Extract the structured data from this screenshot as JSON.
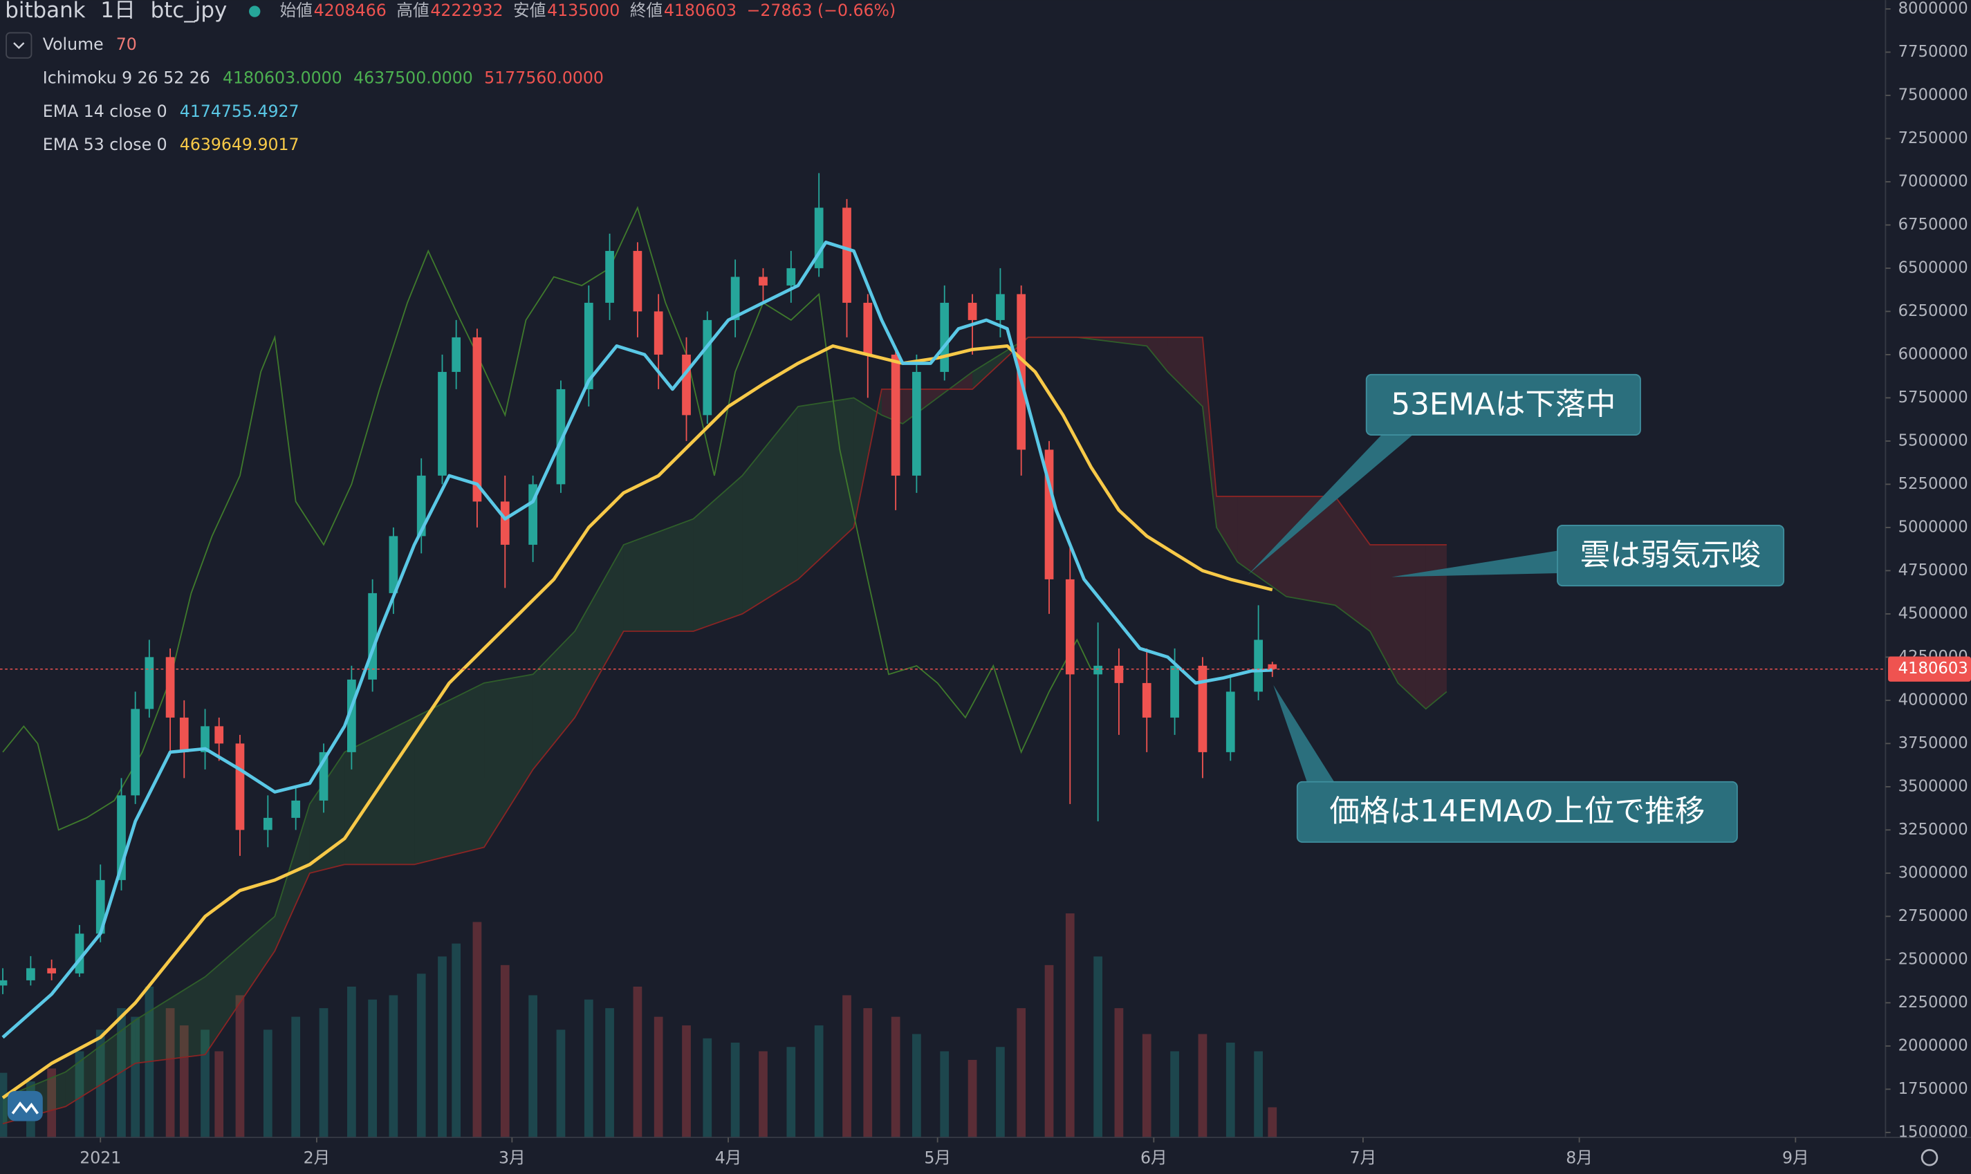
{
  "header": {
    "exchange": "bitbank",
    "interval": "1日",
    "symbol": "btc_jpy",
    "open_label": "始値",
    "open": 4208466,
    "high_label": "高値",
    "high": 4222932,
    "low_label": "安値",
    "low": 4135000,
    "close_label": "終値",
    "close": 4180603,
    "change": "−27863 (−0.66%)"
  },
  "indicators": [
    {
      "name": "Volume",
      "values": [
        70
      ],
      "colors": [
        "#ef7a76"
      ]
    },
    {
      "name": "Ichimoku 9 26 52 26",
      "values": [
        "4180603.0000",
        "4637500.0000",
        "5177560.0000"
      ],
      "colors": [
        "#4caf50",
        "#4caf50",
        "#ef5350"
      ]
    },
    {
      "name": "EMA 14 close 0",
      "values": [
        "4174755.4927"
      ],
      "colors": [
        "#5ac8e6"
      ]
    },
    {
      "name": "EMA 53 close 0",
      "values": [
        "4639649.9017"
      ],
      "colors": [
        "#f7c948"
      ]
    }
  ],
  "chart_data": {
    "type": "candlestick",
    "x": [
      -14,
      -10,
      -7,
      -3,
      0,
      3,
      5,
      7,
      10,
      12,
      15,
      17,
      20,
      24,
      28,
      32,
      36,
      39,
      42,
      46,
      49,
      51,
      54,
      58,
      62,
      66,
      70,
      73,
      77,
      80,
      84,
      87,
      91,
      95,
      99,
      103,
      107,
      110,
      114,
      117,
      121,
      125,
      129,
      132,
      136,
      139,
      143,
      146,
      150,
      154,
      158,
      162,
      166,
      168
    ],
    "open": [
      2350000,
      2380000,
      2450000,
      2420000,
      2650000,
      2960000,
      3450000,
      3950000,
      4250000,
      3900000,
      3700000,
      3850000,
      3750000,
      3250000,
      3320000,
      3420000,
      3700000,
      4120000,
      4620000,
      4950000,
      5300000,
      5900000,
      6100000,
      5150000,
      4900000,
      5250000,
      5800000,
      6300000,
      6600000,
      6250000,
      6000000,
      5650000,
      6200000,
      6450000,
      6400000,
      6500000,
      6850000,
      6300000,
      6000000,
      5300000,
      5900000,
      6300000,
      6200000,
      6350000,
      5450000,
      4700000,
      4150000,
      4200000,
      4100000,
      3900000,
      4200000,
      3700000,
      4050000,
      4208466
    ],
    "high": [
      2450000,
      2520000,
      2500000,
      2700000,
      3050000,
      3550000,
      4050000,
      4350000,
      4300000,
      4000000,
      3950000,
      3900000,
      3800000,
      3450000,
      3500000,
      3750000,
      4200000,
      4700000,
      5000000,
      5400000,
      6000000,
      6200000,
      6150000,
      5300000,
      5300000,
      5850000,
      6400000,
      6700000,
      6650000,
      6350000,
      6100000,
      6250000,
      6550000,
      6500000,
      6600000,
      7050000,
      6900000,
      6350000,
      6050000,
      6000000,
      6400000,
      6350000,
      6500000,
      6400000,
      5500000,
      4900000,
      4450000,
      4300000,
      4300000,
      4300000,
      4250000,
      4150000,
      4550000,
      4222932
    ],
    "low": [
      2300000,
      2350000,
      2380000,
      2400000,
      2600000,
      2900000,
      3400000,
      3900000,
      3700000,
      3550000,
      3600000,
      3650000,
      3100000,
      3150000,
      3250000,
      3350000,
      3600000,
      4050000,
      4500000,
      4850000,
      5250000,
      5800000,
      5000000,
      4650000,
      4800000,
      5200000,
      5700000,
      6200000,
      6100000,
      5800000,
      5500000,
      5600000,
      6100000,
      6300000,
      6300000,
      6450000,
      6100000,
      5750000,
      5100000,
      5200000,
      5850000,
      6000000,
      6100000,
      5300000,
      4500000,
      3400000,
      3300000,
      3800000,
      3700000,
      3800000,
      3550000,
      3650000,
      4000000,
      4135000
    ],
    "close": [
      2380000,
      2450000,
      2420000,
      2650000,
      2960000,
      3450000,
      3950000,
      4250000,
      3900000,
      3700000,
      3850000,
      3750000,
      3250000,
      3320000,
      3420000,
      3700000,
      4120000,
      4620000,
      4950000,
      5300000,
      5900000,
      6100000,
      5150000,
      4900000,
      5250000,
      5800000,
      6300000,
      6600000,
      6250000,
      6000000,
      5650000,
      6200000,
      6450000,
      6400000,
      6500000,
      6850000,
      6300000,
      6000000,
      5300000,
      5900000,
      6300000,
      6200000,
      6350000,
      5450000,
      4700000,
      4150000,
      4200000,
      4100000,
      3900000,
      4200000,
      3700000,
      4050000,
      4350000,
      4180603
    ],
    "volume": [
      150,
      130,
      160,
      200,
      250,
      300,
      280,
      350,
      300,
      260,
      250,
      200,
      330,
      250,
      280,
      300,
      350,
      320,
      330,
      380,
      420,
      450,
      500,
      400,
      330,
      250,
      320,
      300,
      350,
      280,
      260,
      230,
      220,
      200,
      210,
      260,
      330,
      300,
      280,
      240,
      200,
      180,
      210,
      300,
      400,
      520,
      420,
      300,
      240,
      200,
      240,
      220,
      200,
      70
    ],
    "vlim": [
      0,
      700
    ],
    "up_color": "#26a69a",
    "down_color": "#ef5350",
    "ema14": {
      "color": "#5ac8e6",
      "x": [
        -14,
        -7,
        0,
        5,
        10,
        15,
        20,
        25,
        30,
        35,
        40,
        45,
        50,
        54,
        58,
        62,
        66,
        70,
        74,
        78,
        82,
        86,
        90,
        95,
        100,
        104,
        108,
        112,
        115,
        119,
        123,
        127,
        130,
        133,
        137,
        141,
        145,
        149,
        153,
        157,
        161,
        165,
        168
      ],
      "values": [
        2050000,
        2300000,
        2650000,
        3300000,
        3700000,
        3720000,
        3600000,
        3470000,
        3520000,
        3850000,
        4400000,
        4900000,
        5300000,
        5250000,
        5050000,
        5150000,
        5500000,
        5850000,
        6050000,
        6000000,
        5800000,
        6000000,
        6200000,
        6300000,
        6400000,
        6650000,
        6600000,
        6200000,
        5950000,
        5950000,
        6150000,
        6200000,
        6150000,
        5700000,
        5100000,
        4700000,
        4500000,
        4300000,
        4250000,
        4100000,
        4130000,
        4170000,
        4174755.4927
      ]
    },
    "ema53": {
      "color": "#f7c948",
      "x": [
        -14,
        -7,
        0,
        5,
        10,
        15,
        20,
        25,
        30,
        35,
        40,
        45,
        50,
        55,
        60,
        65,
        70,
        75,
        80,
        85,
        90,
        95,
        100,
        105,
        110,
        115,
        120,
        125,
        130,
        134,
        138,
        142,
        146,
        150,
        154,
        158,
        162,
        168
      ],
      "values": [
        1700000,
        1900000,
        2050000,
        2250000,
        2500000,
        2750000,
        2900000,
        2960000,
        3050000,
        3200000,
        3500000,
        3800000,
        4100000,
        4300000,
        4500000,
        4700000,
        5000000,
        5200000,
        5300000,
        5500000,
        5700000,
        5830000,
        5950000,
        6050000,
        6000000,
        5950000,
        5980000,
        6030000,
        6050000,
        5900000,
        5650000,
        5350000,
        5100000,
        4950000,
        4850000,
        4750000,
        4700000,
        4639649.9017
      ]
    },
    "lagging": {
      "color": "#3f7a2c",
      "x": [
        -14,
        -11,
        -9,
        -6,
        -2,
        2,
        6,
        10,
        13,
        16,
        20,
        23,
        25,
        28,
        32,
        36,
        40,
        44,
        47,
        51,
        54,
        58,
        61,
        65,
        69,
        73,
        77,
        81,
        84,
        88,
        91,
        95,
        99,
        103,
        106,
        110,
        113,
        117,
        120,
        124,
        128,
        132,
        136,
        140,
        142
      ],
      "values": [
        3700000,
        3850000,
        3750000,
        3250000,
        3320000,
        3420000,
        3700000,
        4120000,
        4620000,
        4950000,
        5300000,
        5900000,
        6100000,
        5150000,
        4900000,
        5250000,
        5800000,
        6300000,
        6600000,
        6250000,
        6000000,
        5650000,
        6200000,
        6450000,
        6400000,
        6500000,
        6850000,
        6300000,
        6000000,
        5300000,
        5900000,
        6300000,
        6200000,
        6350000,
        5450000,
        4700000,
        4150000,
        4200000,
        4100000,
        3900000,
        4200000,
        3700000,
        4050000,
        4350000,
        4180603
      ]
    },
    "cloud": {
      "x": [
        -14,
        -5,
        5,
        15,
        25,
        30,
        35,
        45,
        55,
        62,
        68,
        75,
        85,
        92,
        100,
        108,
        112,
        115,
        125,
        133,
        140,
        150,
        153,
        158,
        160,
        163,
        170,
        177,
        182,
        186,
        190,
        193
      ],
      "span_a": [
        1700000,
        1850000,
        2150000,
        2400000,
        2750000,
        3400000,
        3700000,
        3900000,
        4100000,
        4150000,
        4400000,
        4900000,
        5050000,
        5300000,
        5700000,
        5750000,
        5650000,
        5600000,
        5900000,
        6100000,
        6100000,
        6050000,
        5900000,
        5700000,
        5000000,
        4800000,
        4600000,
        4550000,
        4400000,
        4100000,
        3950000,
        4050000
      ],
      "span_b": [
        1550000,
        1650000,
        1900000,
        1950000,
        2550000,
        3000000,
        3050000,
        3050000,
        3150000,
        3600000,
        3900000,
        4400000,
        4400000,
        4500000,
        4700000,
        5000000,
        5800000,
        5800000,
        5800000,
        6100000,
        6100000,
        6100000,
        6100000,
        6100000,
        5180000,
        5180000,
        5180000,
        5180000,
        4900000,
        4900000,
        4900000,
        4900000
      ],
      "span_a_color": "#2f5e2a",
      "span_b_color": "#8a2424",
      "up_fill": "rgba(67,160,71,0.16)",
      "down_fill": "rgba(220,60,60,0.16)"
    },
    "xlim": [
      -14.4,
      255.9
    ],
    "xticks": [
      {
        "value": 0,
        "label": "2021"
      },
      {
        "value": 31,
        "label": "2月"
      },
      {
        "value": 59,
        "label": "3月"
      },
      {
        "value": 90,
        "label": "4月"
      },
      {
        "value": 120,
        "label": "5月"
      },
      {
        "value": 151,
        "label": "6月"
      },
      {
        "value": 181,
        "label": "7月"
      },
      {
        "value": 212,
        "label": "8月"
      },
      {
        "value": 243,
        "label": "9月"
      }
    ],
    "ylim": [
      1471000,
      8051000
    ],
    "yticks": [
      1500000,
      1750000,
      2000000,
      2250000,
      2500000,
      2750000,
      3000000,
      3250000,
      3500000,
      3750000,
      4000000,
      4250000,
      4500000,
      4750000,
      5000000,
      5250000,
      5500000,
      5750000,
      6000000,
      6250000,
      6500000,
      6750000,
      7000000,
      7250000,
      7500000,
      7750000,
      8000000
    ],
    "grid": false,
    "log": false,
    "annotations": [
      {
        "text": "53EMAは下落中"
      },
      {
        "text": "雲は弱気示唆"
      },
      {
        "text": "価格は14EMAの上位で推移"
      }
    ]
  }
}
